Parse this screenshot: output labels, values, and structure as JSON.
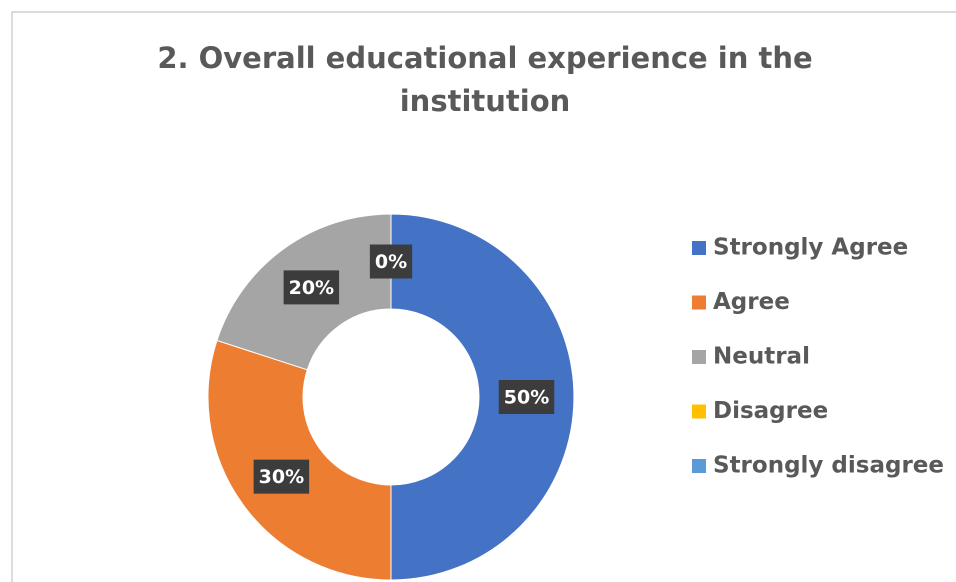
{
  "chart_data": {
    "type": "donut",
    "title": [
      "2. Overall educational experience in the",
      "institution"
    ],
    "categories": [
      "Strongly Agree",
      "Agree",
      "Neutral",
      "Disagree",
      "Strongly disagree"
    ],
    "values": [
      50,
      30,
      20,
      0,
      0
    ],
    "value_labels": [
      "50%",
      "30%",
      "20%",
      "0%",
      null
    ],
    "colors": [
      "#4472c4",
      "#ed7d31",
      "#a5a5a5",
      "#ffc000",
      "#5b9bd5"
    ],
    "legend": "right"
  }
}
